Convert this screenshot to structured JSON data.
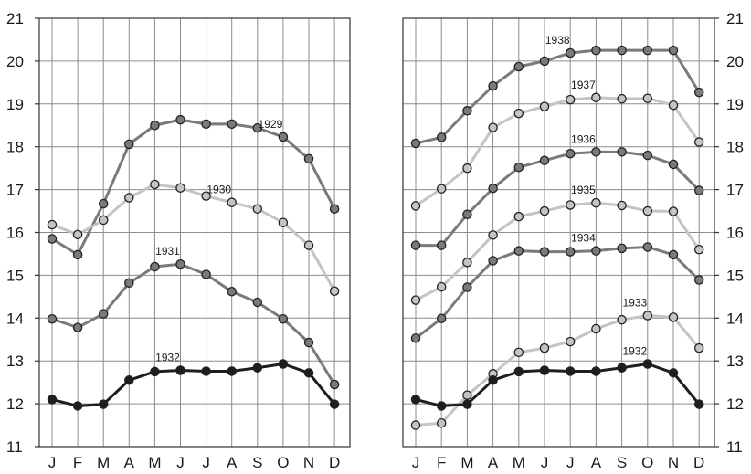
{
  "chart_data": [
    {
      "type": "line",
      "title": "",
      "xlabel": "",
      "ylabel": "",
      "ylim": [
        11,
        21
      ],
      "yticks": [
        11,
        12,
        13,
        14,
        15,
        16,
        17,
        18,
        19,
        20,
        21
      ],
      "y_axis_side": "left",
      "grid": true,
      "categories": [
        "J",
        "F",
        "M",
        "A",
        "M",
        "J",
        "J",
        "A",
        "S",
        "O",
        "N",
        "D"
      ],
      "series": [
        {
          "name": "1929",
          "color": "#7a7a7a",
          "label_at": 9,
          "values": [
            15.85,
            15.48,
            16.67,
            18.06,
            18.5,
            18.63,
            18.53,
            18.53,
            18.44,
            18.23,
            17.72,
            16.55
          ]
        },
        {
          "name": "1930",
          "color": "#c4c4c4",
          "label_at": 7,
          "values": [
            16.18,
            15.95,
            16.29,
            16.81,
            17.12,
            17.04,
            16.85,
            16.7,
            16.55,
            16.23,
            15.7,
            14.63
          ]
        },
        {
          "name": "1931",
          "color": "#7a7a7a",
          "label_at": 5,
          "values": [
            13.98,
            13.78,
            14.1,
            14.82,
            15.2,
            15.26,
            15.02,
            14.62,
            14.37,
            13.98,
            13.43,
            12.45
          ]
        },
        {
          "name": "1932",
          "color": "#1e1e1e",
          "label_at": 5,
          "values": [
            12.1,
            11.95,
            11.99,
            12.55,
            12.75,
            12.78,
            12.76,
            12.76,
            12.84,
            12.93,
            12.72,
            11.99
          ]
        }
      ]
    },
    {
      "type": "line",
      "title": "",
      "xlabel": "",
      "ylabel": "",
      "ylim": [
        11,
        21
      ],
      "yticks": [
        11,
        12,
        13,
        14,
        15,
        16,
        17,
        18,
        19,
        20,
        21
      ],
      "y_axis_side": "right",
      "grid": true,
      "categories": [
        "J",
        "F",
        "M",
        "A",
        "M",
        "J",
        "J",
        "A",
        "S",
        "O",
        "N",
        "D"
      ],
      "series": [
        {
          "name": "1938",
          "color": "#7a7a7a",
          "label_at": 6,
          "values": [
            18.08,
            18.22,
            18.84,
            19.42,
            19.87,
            20.0,
            20.19,
            20.25,
            20.25,
            20.25,
            20.25,
            19.27
          ]
        },
        {
          "name": "1937",
          "color": "#c4c4c4",
          "label_at": 7,
          "values": [
            16.62,
            17.02,
            17.5,
            18.45,
            18.78,
            18.94,
            19.1,
            19.15,
            19.12,
            19.13,
            18.97,
            18.11
          ]
        },
        {
          "name": "1936",
          "color": "#7a7a7a",
          "label_at": 7,
          "values": [
            15.7,
            15.7,
            16.42,
            17.03,
            17.52,
            17.68,
            17.84,
            17.88,
            17.88,
            17.8,
            17.59,
            16.98
          ]
        },
        {
          "name": "1935",
          "color": "#c4c4c4",
          "label_at": 7,
          "values": [
            14.42,
            14.73,
            15.3,
            15.94,
            16.37,
            16.5,
            16.64,
            16.69,
            16.63,
            16.5,
            16.49,
            15.6
          ]
        },
        {
          "name": "1934",
          "color": "#7a7a7a",
          "label_at": 7,
          "values": [
            13.53,
            13.99,
            14.72,
            15.34,
            15.57,
            15.55,
            15.55,
            15.57,
            15.63,
            15.66,
            15.48,
            14.89
          ]
        },
        {
          "name": "1933",
          "color": "#c4c4c4",
          "label_at": 9,
          "values": [
            11.5,
            11.55,
            12.2,
            12.7,
            13.2,
            13.3,
            13.45,
            13.75,
            13.96,
            14.06,
            14.02,
            13.3
          ]
        },
        {
          "name": "1932",
          "color": "#1e1e1e",
          "label_at": 9,
          "values": [
            12.1,
            11.95,
            11.99,
            12.55,
            12.75,
            12.78,
            12.76,
            12.76,
            12.84,
            12.93,
            12.72,
            11.99
          ]
        }
      ]
    }
  ]
}
